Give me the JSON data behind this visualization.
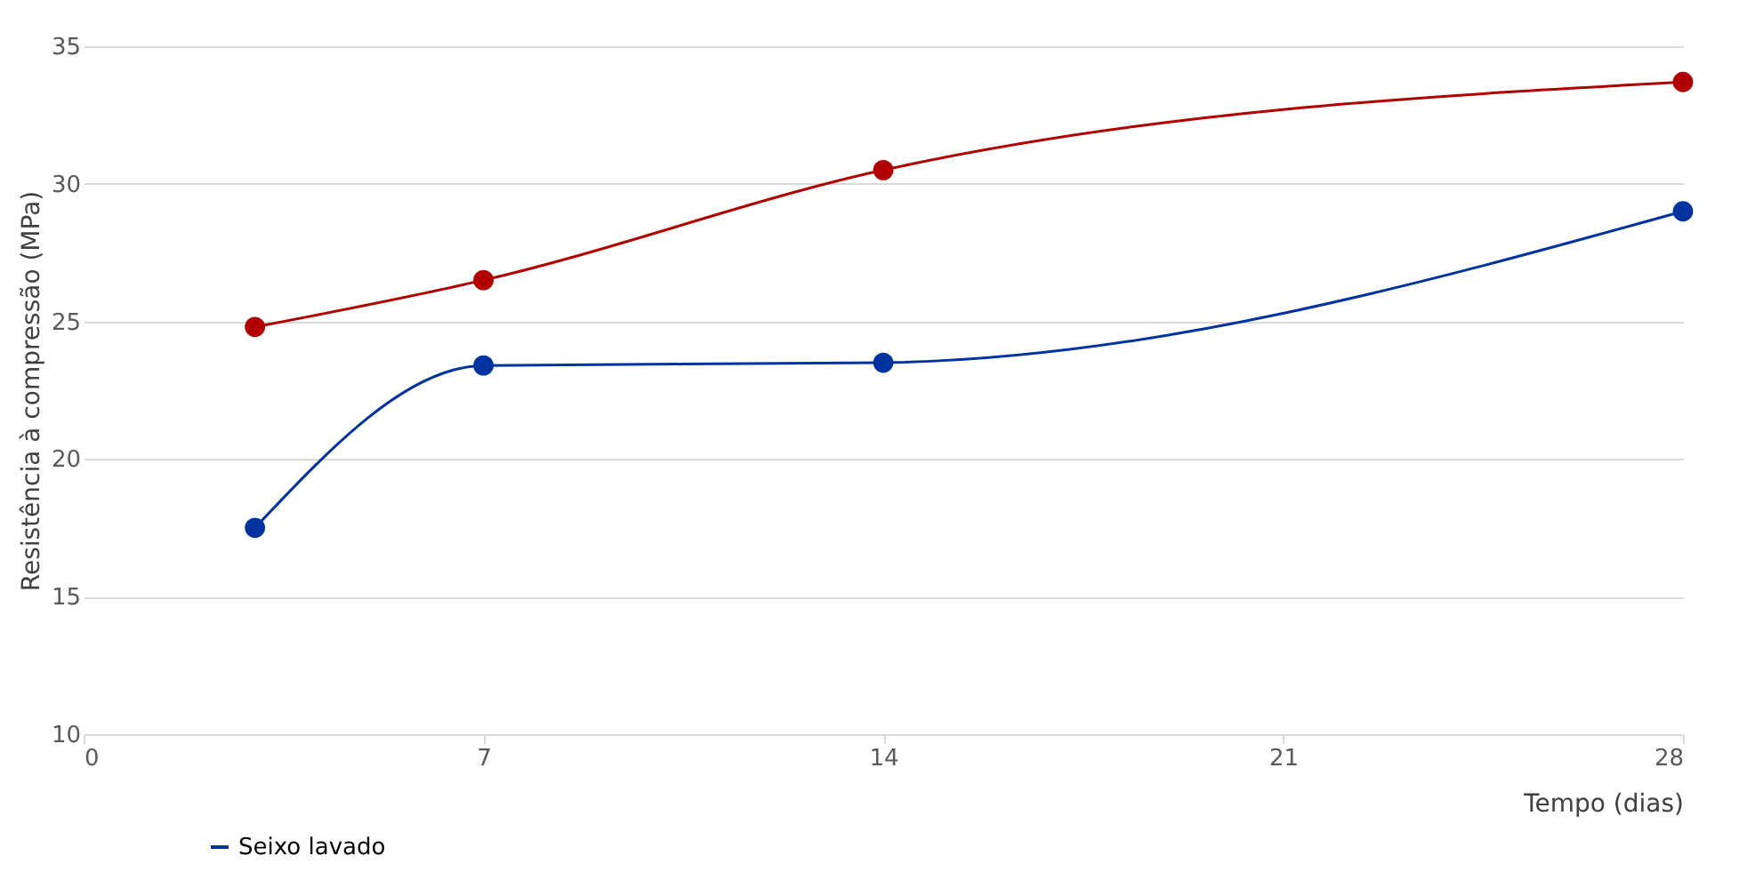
{
  "chart_data": {
    "type": "line",
    "xlabel": "Tempo  (dias)",
    "ylabel": "Resistência à compressão (MPa)",
    "x": [
      3,
      7,
      14,
      28
    ],
    "series": [
      {
        "name": "Seixo lavado",
        "color": "#0033a0",
        "values": [
          17.5,
          23.4,
          23.5,
          29.0
        ]
      },
      {
        "color": "#b00000",
        "values": [
          24.8,
          26.5,
          30.5,
          33.7
        ]
      }
    ],
    "xlim": [
      0,
      28
    ],
    "xticks": [
      0,
      7,
      14,
      21,
      28
    ],
    "ylim": [
      10,
      35
    ],
    "yticks": [
      10,
      15,
      20,
      25,
      30,
      35
    ],
    "grid": "y",
    "legend": "bottom left",
    "marker": "circle",
    "line_style": "solid"
  }
}
